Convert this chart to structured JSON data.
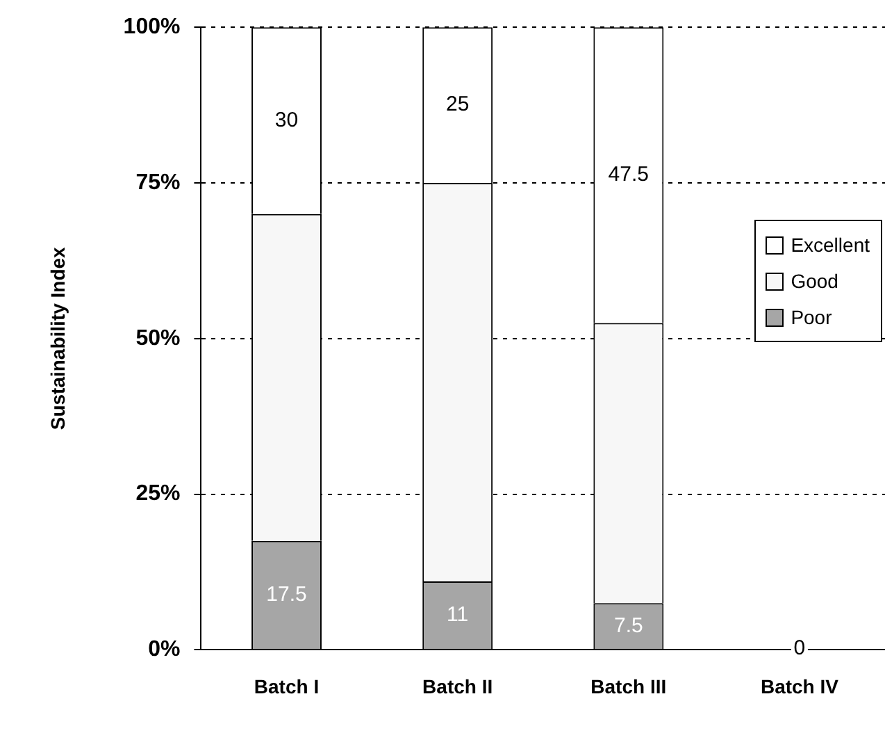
{
  "chart_data": {
    "type": "bar",
    "stacked": true,
    "ylabel": "Sustainability Index",
    "categories": [
      "Batch I",
      "Batch II",
      "Batch III",
      "Batch IV"
    ],
    "series": [
      {
        "name": "Poor",
        "color": "#a6a6a6",
        "values": [
          17.5,
          11,
          7.5,
          0
        ],
        "value_labels": [
          "17.5",
          "11",
          "7.5",
          "0"
        ]
      },
      {
        "name": "Good",
        "color": "#f7f7f7",
        "values": [
          52.5,
          64,
          45,
          0
        ]
      },
      {
        "name": "Excellent",
        "color": "#ffffff",
        "values": [
          30,
          25,
          47.5,
          0
        ],
        "value_labels": [
          "30",
          "25",
          "47.5",
          null
        ]
      }
    ],
    "ylim": [
      0,
      100
    ],
    "yticks": [
      {
        "value": 0,
        "label": "0%"
      },
      {
        "value": 25,
        "label": "25%"
      },
      {
        "value": 50,
        "label": "50%"
      },
      {
        "value": 75,
        "label": "75%"
      },
      {
        "value": 100,
        "label": "100%"
      }
    ],
    "grid": "y",
    "legend": "right"
  }
}
